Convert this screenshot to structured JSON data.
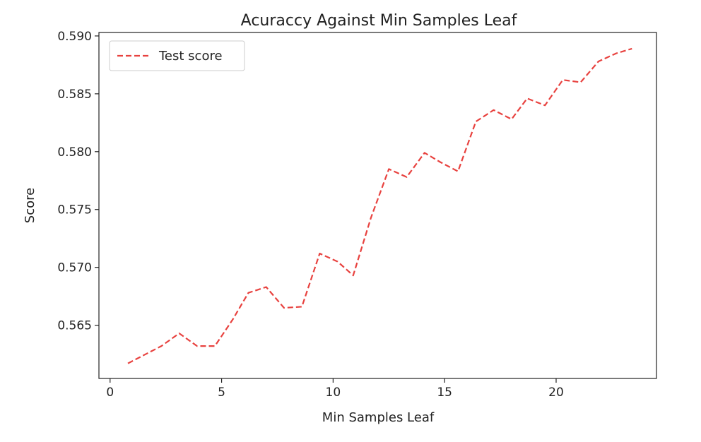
{
  "chart_data": {
    "type": "line",
    "title": "Acuraccy Against Min Samples Leaf",
    "xlabel": "Min Samples Leaf",
    "ylabel": "Score",
    "xlim": [
      -0.5,
      24.5
    ],
    "ylim": [
      0.5604,
      0.5903
    ],
    "xticks": [
      0,
      5,
      10,
      15,
      20
    ],
    "xtick_labels": [
      "0",
      "5",
      "10",
      "15",
      "20"
    ],
    "yticks": [
      0.565,
      0.57,
      0.575,
      0.58,
      0.585,
      0.59
    ],
    "ytick_labels": [
      "0.565",
      "0.570",
      "0.575",
      "0.580",
      "0.585",
      "0.590"
    ],
    "grid": false,
    "legend_position": "upper-left",
    "series": [
      {
        "name": "Test score",
        "color": "#e8423f",
        "line_style": "dashed",
        "x": [
          0.8,
          1.5,
          2.3,
          3.1,
          3.9,
          4.7,
          5.5,
          6.2,
          7.0,
          7.8,
          8.6,
          9.4,
          10.2,
          10.9,
          11.7,
          12.5,
          13.3,
          14.1,
          14.8,
          15.6,
          16.4,
          17.2,
          18.0,
          18.7,
          19.5,
          20.3,
          21.1,
          21.9,
          22.7,
          23.4
        ],
        "y": [
          0.5617,
          0.5624,
          0.5632,
          0.5643,
          0.5632,
          0.5632,
          0.5655,
          0.5678,
          0.5683,
          0.5665,
          0.5666,
          0.5712,
          0.5705,
          0.5693,
          0.5743,
          0.5785,
          0.5778,
          0.5799,
          0.5791,
          0.5783,
          0.5826,
          0.5836,
          0.5828,
          0.5846,
          0.584,
          0.5862,
          0.586,
          0.5878,
          0.5885,
          0.5889
        ]
      }
    ]
  }
}
